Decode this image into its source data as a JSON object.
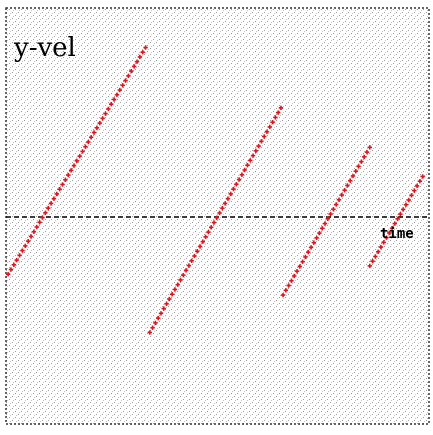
{
  "chart_data": {
    "type": "scatter",
    "title": "",
    "ylabel": "y-vel",
    "xlabel": "time",
    "xlim": [
      0,
      100
    ],
    "ylim": [
      -100,
      100
    ],
    "grid": false,
    "background": "stippled-gray",
    "axis_line": "dashed",
    "colors": {
      "marker": "#e0141c",
      "axis": "#000000",
      "border": "#333333",
      "stipple": "#9a9a9a"
    },
    "marker": "plus",
    "series": [
      {
        "segments": [
          {
            "x": [
              0.5,
              33
            ],
            "y": [
              -28,
              81
            ]
          },
          {
            "x": [
              34,
              65
            ],
            "y": [
              -56,
              52
            ]
          },
          {
            "x": [
              65.5,
              86
            ],
            "y": [
              -38,
              33
            ]
          },
          {
            "x": [
              86,
              98.5
            ],
            "y": [
              -24,
              19
            ]
          }
        ]
      }
    ]
  }
}
